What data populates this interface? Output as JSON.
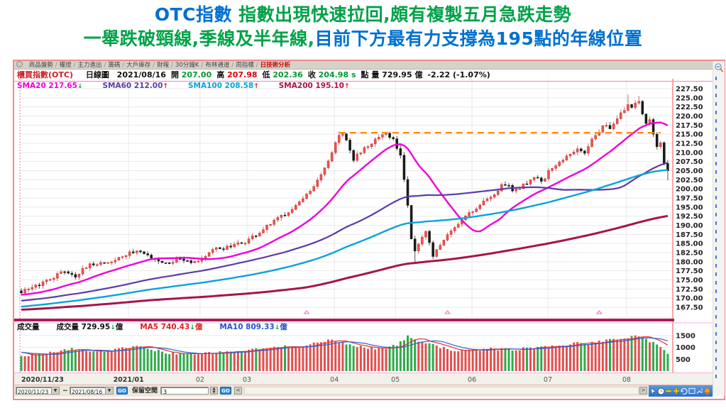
{
  "title": {
    "line1_blue": "OTC指數",
    "line1_green": " 指數出現快速拉回,頗有複製五月急跌走勢",
    "line2_green": "一舉跌破頸線,季線及半年線,",
    "line2_blue": "目前下方最有力支撐為195點的年線位置"
  },
  "tabs": [
    "商品盤勢",
    "權證",
    "主力進出",
    "籌碼",
    "大戶庫存",
    "財報",
    "30分鐘K",
    "布林通道",
    "周指標",
    "日技術分析"
  ],
  "active_tab": "日技術分析",
  "info": {
    "symbol": "櫃買指數(OTC)",
    "tokens": [
      {
        "label": "日線圖",
        "value": "",
        "color": "#111"
      },
      {
        "label": "",
        "value": "2021/08/16",
        "color": "#111"
      },
      {
        "label": "開",
        "value": "207.00",
        "color": "#009933"
      },
      {
        "label": "高",
        "value": "207.98",
        "color": "#dd0000"
      },
      {
        "label": "低",
        "value": "202.36",
        "color": "#009933"
      },
      {
        "label": "收",
        "value": "204.98 s",
        "color": "#009933"
      },
      {
        "label": "點  量",
        "value": "729.95 億",
        "color": "#111"
      },
      {
        "label": "",
        "value": "-2.22 (-1.07%)",
        "color": "#111"
      }
    ]
  },
  "sma_legend": [
    {
      "label": "SMA20",
      "value": "217.65",
      "color": "#f000d8",
      "arrow": "↓",
      "arrow_dir": "down"
    },
    {
      "label": "SMA60",
      "value": "212.00",
      "color": "#5b3ca8",
      "arrow": "↑",
      "arrow_dir": "up"
    },
    {
      "label": "SMA100",
      "value": "208.58",
      "color": "#0aa2dc",
      "arrow": "↑",
      "arrow_dir": "up"
    },
    {
      "label": "SMA200",
      "value": "195.10",
      "color": "#a81448",
      "arrow": "↑",
      "arrow_dir": "up"
    }
  ],
  "volume_header": {
    "pane_label": "成交量",
    "tokens": [
      {
        "label": "成交量",
        "value": "729.95",
        "unit": "億",
        "color": "#111",
        "arrow": "↓",
        "arrow_dir": "down"
      },
      {
        "label": "MA5",
        "value": "740.43",
        "unit": "億",
        "color": "#dd2222",
        "arrow": "↓",
        "arrow_dir": "down"
      },
      {
        "label": "MA10",
        "value": "809.33",
        "unit": "億",
        "color": "#2255cc",
        "arrow": "↓",
        "arrow_dir": "down"
      }
    ]
  },
  "toolbar": {
    "date_from": "2020/11/23",
    "date_to": "2021/08/16",
    "tilde": "~",
    "go1": "GO",
    "keep_space_label": "保留空間",
    "keep_space_value": "3",
    "go2": "GO",
    "scroll_left": "<",
    "scroll_right": ">"
  },
  "chart_data": {
    "type": "candlestick",
    "title": "櫃買指數(OTC) 日線圖",
    "days": 180,
    "seed": 42,
    "y_axis": {
      "max": 227.5,
      "min": 167.5,
      "step": 2.5
    },
    "x_labels": [
      {
        "label": "2020/11/23",
        "i": 0,
        "align": "start",
        "bold": true
      },
      {
        "label": "2021/01",
        "i": 29.7,
        "align": "middle",
        "bold": true
      },
      {
        "label": "02",
        "i": 49.5,
        "align": "middle",
        "bold": false
      },
      {
        "label": "03",
        "i": 62.5,
        "align": "middle",
        "bold": false
      },
      {
        "label": "04",
        "i": 86.7,
        "align": "middle",
        "bold": false
      },
      {
        "label": "05",
        "i": 103.6,
        "align": "middle",
        "bold": false
      },
      {
        "label": "06",
        "i": 124.8,
        "align": "middle",
        "bold": false
      },
      {
        "label": "07",
        "i": 145.8,
        "align": "middle",
        "bold": false
      },
      {
        "label": "08",
        "i": 167.6,
        "align": "middle",
        "bold": false
      }
    ],
    "close_keypoints": [
      [
        0,
        172
      ],
      [
        3,
        172.5
      ],
      [
        7,
        175
      ],
      [
        12,
        177.5
      ],
      [
        15,
        176.3
      ],
      [
        20,
        179.5
      ],
      [
        25,
        180
      ],
      [
        28,
        181.5
      ],
      [
        32,
        183
      ],
      [
        36,
        181.3
      ],
      [
        40,
        179.5
      ],
      [
        44,
        181
      ],
      [
        48,
        180
      ],
      [
        50,
        181
      ],
      [
        54,
        183.5
      ],
      [
        58,
        184
      ],
      [
        62,
        185.5
      ],
      [
        66,
        188
      ],
      [
        70,
        191
      ],
      [
        74,
        194
      ],
      [
        78,
        197
      ],
      [
        80,
        199
      ],
      [
        83,
        203.5
      ],
      [
        86,
        210
      ],
      [
        88,
        214.5
      ],
      [
        89,
        215.3
      ],
      [
        92,
        208
      ],
      [
        95,
        211.5
      ],
      [
        98,
        213.5
      ],
      [
        101,
        214.8
      ],
      [
        103,
        213.5
      ],
      [
        105,
        209.5
      ],
      [
        106,
        203
      ],
      [
        107,
        196
      ],
      [
        108,
        186.5
      ],
      [
        109,
        183
      ],
      [
        111,
        186.5
      ],
      [
        112,
        188
      ],
      [
        114,
        181.8
      ],
      [
        116,
        184.5
      ],
      [
        118,
        187.5
      ],
      [
        121,
        190.5
      ],
      [
        123,
        193
      ],
      [
        126,
        194.5
      ],
      [
        128,
        196.5
      ],
      [
        131,
        199
      ],
      [
        134,
        201.5
      ],
      [
        136,
        199.5
      ],
      [
        139,
        201
      ],
      [
        142,
        203.5
      ],
      [
        144,
        202
      ],
      [
        146,
        204.5
      ],
      [
        149,
        207
      ],
      [
        152,
        209.5
      ],
      [
        154,
        211.5
      ],
      [
        156,
        210.3
      ],
      [
        158,
        213.5
      ],
      [
        160,
        215.5
      ],
      [
        162,
        218
      ],
      [
        163,
        216.6
      ],
      [
        165,
        219.5
      ],
      [
        167,
        221.5
      ],
      [
        168,
        223.5
      ],
      [
        169,
        221.8
      ],
      [
        170,
        223
      ],
      [
        171,
        224.3
      ],
      [
        172,
        220.5
      ],
      [
        173,
        217.5
      ],
      [
        174,
        218.5
      ],
      [
        175,
        214.8
      ],
      [
        176,
        211.5
      ],
      [
        177,
        212.3
      ],
      [
        178,
        207.2
      ],
      [
        179,
        204.98
      ]
    ],
    "last_candle": {
      "open": 207.0,
      "high": 207.98,
      "low": 202.36,
      "close": 204.98
    },
    "high_overrides": {
      "88": 215.8,
      "101": 215.7,
      "168": 225.9,
      "171": 225.5
    },
    "low_overrides": {
      "109": 179.4,
      "114": 180.8
    },
    "close_noise": 1.2,
    "pre_history": {
      "start": 162,
      "end": 171.6,
      "days": 120,
      "noise": 0.5
    },
    "sma_windows": [
      20,
      60,
      100,
      200
    ],
    "sma_colors": [
      "#f000d8",
      "#5b3ca8",
      "#0aa2dc",
      "#a81448"
    ],
    "sma_widths": [
      2.4,
      2.2,
      2.4,
      3.0
    ],
    "neckline": {
      "price": 215.4,
      "from_i": 88,
      "to_i": 177,
      "color": "#ff8c00"
    },
    "markers": {
      "shape": "triangle-up",
      "color": "#ff66cc",
      "at_i": [
        79,
        118,
        160
      ]
    },
    "candle_up_color": "#ef5350",
    "candle_down_color": "#1a1a1a",
    "volume": {
      "axis_ticks": [
        1500,
        1000,
        500
      ],
      "unit": "億",
      "keypoints": [
        [
          0,
          650
        ],
        [
          8,
          800
        ],
        [
          14,
          950
        ],
        [
          20,
          820
        ],
        [
          26,
          900
        ],
        [
          32,
          1050
        ],
        [
          40,
          780
        ],
        [
          48,
          700
        ],
        [
          52,
          760
        ],
        [
          58,
          820
        ],
        [
          64,
          900
        ],
        [
          70,
          1000
        ],
        [
          76,
          1050
        ],
        [
          82,
          1200
        ],
        [
          86,
          1300
        ],
        [
          90,
          1150
        ],
        [
          95,
          1000
        ],
        [
          100,
          950
        ],
        [
          104,
          1100
        ],
        [
          107,
          1450
        ],
        [
          110,
          1300
        ],
        [
          114,
          1150
        ],
        [
          118,
          900
        ],
        [
          124,
          850
        ],
        [
          130,
          950
        ],
        [
          136,
          900
        ],
        [
          142,
          1000
        ],
        [
          148,
          1050
        ],
        [
          152,
          1150
        ],
        [
          158,
          1200
        ],
        [
          163,
          1300
        ],
        [
          167,
          1400
        ],
        [
          170,
          1500
        ],
        [
          173,
          1350
        ],
        [
          176,
          1100
        ],
        [
          178,
          900
        ],
        [
          179,
          729.95
        ]
      ],
      "noise": 120,
      "pre_value": 800,
      "ma_windows": [
        5,
        10
      ],
      "ma_colors": [
        "#e03030",
        "#3060d0"
      ],
      "up_color": "#e05050",
      "down_color": "#2faa4a"
    }
  }
}
